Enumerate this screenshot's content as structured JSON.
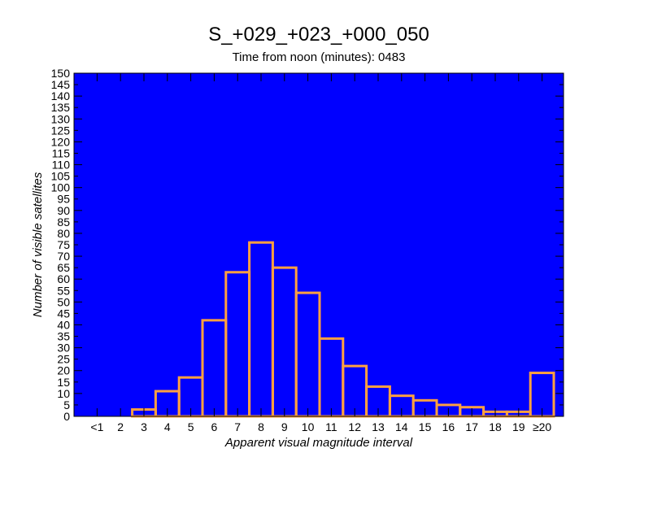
{
  "chart_data": {
    "type": "bar",
    "title": "S_+029_+023_+000_050",
    "subtitle": "Time from noon (minutes): 0483",
    "xlabel": "Apparent visual magnitude interval",
    "ylabel": "Number of visible satellites",
    "categories": [
      "<1",
      "2",
      "3",
      "4",
      "5",
      "6",
      "7",
      "8",
      "9",
      "10",
      "11",
      "12",
      "13",
      "14",
      "15",
      "16",
      "17",
      "18",
      "19",
      "≥20"
    ],
    "values": [
      0,
      0,
      3,
      11,
      17,
      42,
      63,
      76,
      65,
      54,
      34,
      22,
      13,
      9,
      7,
      5,
      4,
      2,
      2,
      19
    ],
    "ylim": [
      0,
      150
    ],
    "ytick_step": 5,
    "grid": false,
    "colors": {
      "plot_background": "#0000ff",
      "bar_edge": "#ffa040",
      "axis": "#000000"
    }
  }
}
